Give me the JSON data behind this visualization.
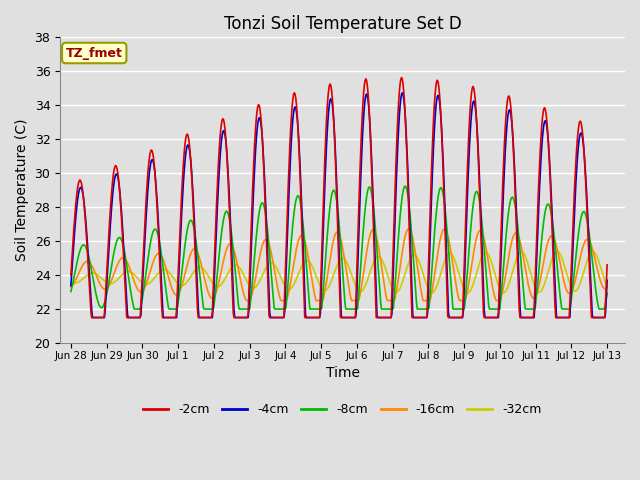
{
  "title": "Tonzi Soil Temperature Set D",
  "xlabel": "Time",
  "ylabel": "Soil Temperature (C)",
  "ylim": [
    20,
    38
  ],
  "series_labels": [
    "-2cm",
    "-4cm",
    "-8cm",
    "-16cm",
    "-32cm"
  ],
  "series_colors": [
    "#dd0000",
    "#0000cc",
    "#00bb00",
    "#ff8800",
    "#cccc00"
  ],
  "line_widths": [
    1.2,
    1.2,
    1.2,
    1.2,
    1.2
  ],
  "background_color": "#e0e0e0",
  "axes_face_color": "#e0e0e0",
  "legend_label": "TZ_fmet",
  "legend_bg": "#ffffcc",
  "legend_border": "#999900",
  "annotation_color": "#990000",
  "yticks": [
    20,
    22,
    24,
    26,
    28,
    30,
    32,
    34,
    36,
    38
  ],
  "tick_labels": [
    "Jun 28",
    "Jun 29",
    "Jun 30",
    "Jul 1",
    "Jul 2",
    "Jul 3",
    "Jul 4",
    "Jul 5",
    "Jul 6",
    "Jul 7",
    "Jul 8",
    "Jul 9",
    "Jul 10",
    "Jul 11",
    "Jul 12",
    "Jul 13"
  ]
}
